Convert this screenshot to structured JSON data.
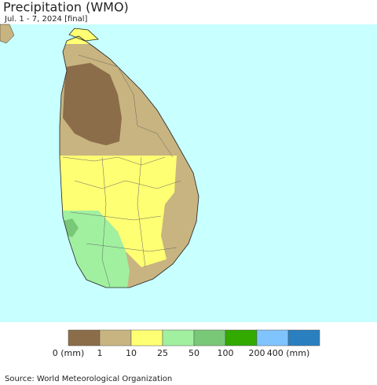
{
  "header": {
    "title": "Precipitation (WMO)",
    "subtitle": "Jul. 1 - 7, 2024 [final]"
  },
  "legend": {
    "labels": [
      "0 (mm)",
      "1",
      "10",
      "25",
      "50",
      "100",
      "200",
      "400 (mm)"
    ],
    "colors": [
      "#8c6d4a",
      "#c8b480",
      "#ffff73",
      "#a0f0a0",
      "#78c878",
      "#32aa00",
      "#80c4ff",
      "#2a7fbf"
    ]
  },
  "footer": {
    "source": "Source: World Meteorological Organization"
  }
}
